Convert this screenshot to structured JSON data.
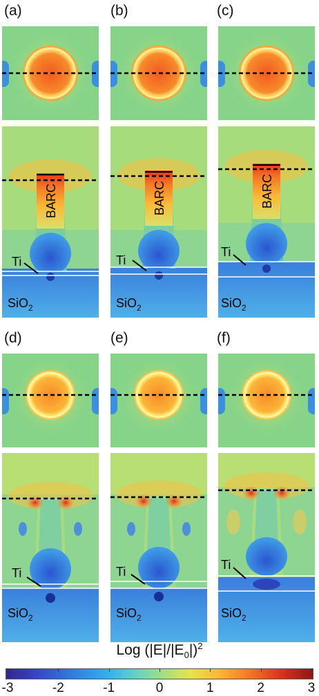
{
  "panels": [
    {
      "id": "a",
      "label": "(a)"
    },
    {
      "id": "b",
      "label": "(b)"
    },
    {
      "id": "c",
      "label": "(c)"
    },
    {
      "id": "d",
      "label": "(d)"
    },
    {
      "id": "e",
      "label": "(e)"
    },
    {
      "id": "f",
      "label": "(f)"
    }
  ],
  "annotations": {
    "barc": "BARC",
    "ti": "Ti",
    "sio2_base": "SiO",
    "sio2_sub": "2"
  },
  "colorbar": {
    "title_prefix": "Log (|E|/|E",
    "title_sub": "0",
    "title_suffix": "|)",
    "title_sup": "2",
    "ticks": [
      "-3",
      "-2",
      "-1",
      "0",
      "1",
      "2",
      "3"
    ],
    "range": [
      -3,
      3
    ]
  },
  "colors": {
    "background": "#7ed28e",
    "hot": "#f26b24",
    "substrate": "#3f8fe0",
    "cold": "#2a4fc8"
  }
}
